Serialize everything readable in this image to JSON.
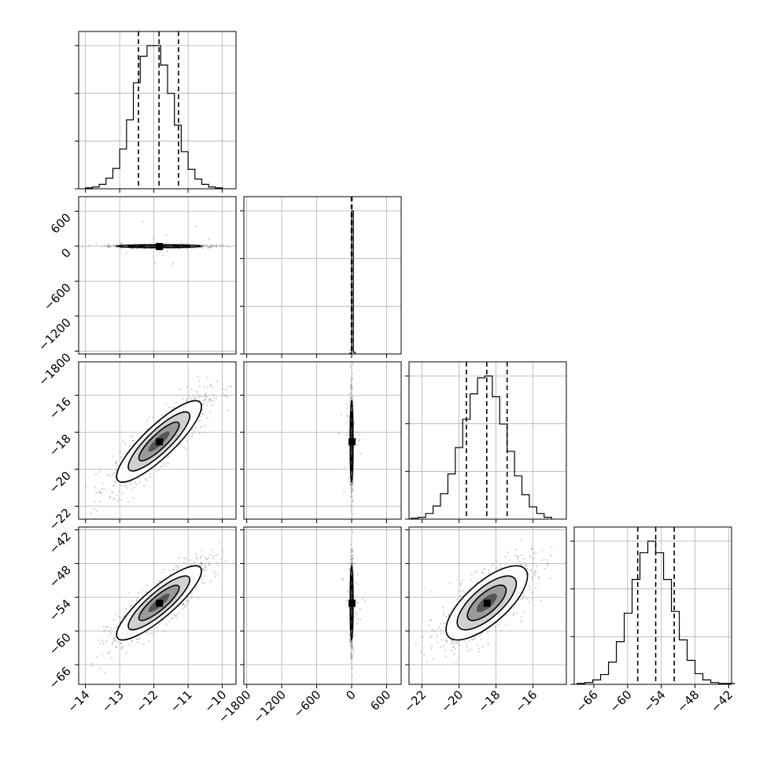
{
  "chart_data": {
    "type": "corner",
    "title": "",
    "parameters": [
      {
        "index": 0,
        "xlabel": "",
        "mean": -11.85,
        "sd": 0.62,
        "range": [
          -14.2,
          -9.6
        ],
        "ticks": [
          -14,
          -13,
          -12,
          -11,
          -10
        ],
        "quantiles": [
          -12.45,
          -11.85,
          -11.28
        ]
      },
      {
        "index": 1,
        "xlabel": "",
        "mean": 0,
        "sd": 12,
        "range": [
          -1850,
          850
        ],
        "ticks": [
          -1800,
          -1200,
          -600,
          0,
          600
        ],
        "yticks": [
          -1800,
          -1200,
          -600,
          0,
          600
        ],
        "quantiles": [
          -5,
          0,
          6
        ]
      },
      {
        "index": 2,
        "xlabel": "",
        "mean": -18.5,
        "sd": 1.1,
        "range": [
          -22.7,
          -14.2
        ],
        "ticks": [
          -22,
          -20,
          -18,
          -16
        ],
        "quantiles": [
          -19.6,
          -18.5,
          -17.4
        ]
      },
      {
        "index": 3,
        "xlabel": "",
        "mean": -55,
        "sd": 3.3,
        "range": [
          -69.5,
          -41.5
        ],
        "ticks": [
          -66,
          -60,
          -54,
          -48,
          -42
        ],
        "quantiles": [
          -58.2,
          -55.0,
          -51.7
        ]
      }
    ],
    "row_label_ticks": {
      "1": [
        "600",
        "0",
        "−600",
        "−1200",
        "−1800"
      ],
      "2": [
        "−16",
        "−18",
        "−20",
        "−22"
      ],
      "3": [
        "−42",
        "−48",
        "−54",
        "−60",
        "−66"
      ]
    },
    "x_tick_labels": {
      "0": [
        "−14",
        "−13",
        "−12",
        "−11",
        "−10"
      ],
      "1": [
        "−1800",
        "−1200",
        "−600",
        "0",
        "600"
      ],
      "2": [
        "−22",
        "−20",
        "−18",
        "−16"
      ],
      "3": [
        "−66",
        "−60",
        "−54",
        "−48",
        "−42"
      ]
    },
    "histograms": [
      {
        "param": 0,
        "bin_start": -14.0,
        "bin_width": 0.2,
        "counts": [
          1,
          2,
          5,
          12,
          23,
          45,
          78,
          120,
          150,
          162,
          162,
          140,
          108,
          72,
          42,
          22,
          11,
          5,
          2,
          1
        ]
      },
      {
        "param": 1,
        "bin_start": -30,
        "bin_width": 30,
        "counts": [
          1,
          173,
          2
        ]
      },
      {
        "param": 2,
        "bin_start": -22.6,
        "bin_width": 0.4,
        "counts": [
          1,
          2,
          6,
          14,
          27,
          48,
          76,
          106,
          133,
          150,
          152,
          130,
          101,
          72,
          46,
          26,
          13,
          6,
          2
        ]
      },
      {
        "param": 3,
        "bin_start": -69,
        "bin_width": 1.4,
        "counts": [
          1,
          2,
          5,
          11,
          25,
          48,
          80,
          118,
          148,
          161,
          148,
          118,
          82,
          50,
          27,
          12,
          5,
          2,
          1,
          1
        ]
      }
    ],
    "correlations": {
      "0-2": 0.86,
      "0-3": 0.86,
      "2-3": 0.72,
      "0-1": 0.0,
      "1-2": 0.0,
      "1-3": 0.0
    },
    "grid": true,
    "legend": "none"
  }
}
